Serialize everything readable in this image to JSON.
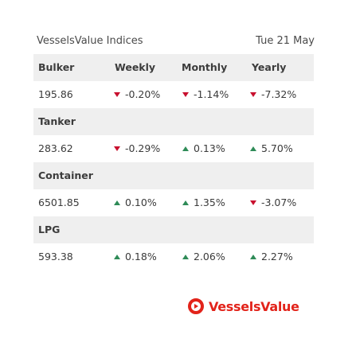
{
  "header": {
    "title": "VesselsValue Indices",
    "date": "Tue 21 May"
  },
  "columns": {
    "category": "Bulker",
    "weekly": "Weekly",
    "monthly": "Monthly",
    "yearly": "Yearly"
  },
  "sections": [
    {
      "name": "Bulker",
      "value": "195.86",
      "weekly": {
        "text": "-0.20%",
        "dir": "down"
      },
      "monthly": {
        "text": "-1.14%",
        "dir": "down"
      },
      "yearly": {
        "text": "-7.32%",
        "dir": "down"
      }
    },
    {
      "name": "Tanker",
      "value": "283.62",
      "weekly": {
        "text": "-0.29%",
        "dir": "down"
      },
      "monthly": {
        "text": "0.13%",
        "dir": "up"
      },
      "yearly": {
        "text": "5.70%",
        "dir": "up"
      }
    },
    {
      "name": "Container",
      "value": "6501.85",
      "weekly": {
        "text": "0.10%",
        "dir": "up"
      },
      "monthly": {
        "text": "1.35%",
        "dir": "up"
      },
      "yearly": {
        "text": "-3.07%",
        "dir": "down"
      }
    },
    {
      "name": "LPG",
      "value": "593.38",
      "weekly": {
        "text": "0.18%",
        "dir": "up"
      },
      "monthly": {
        "text": "2.06%",
        "dir": "up"
      },
      "yearly": {
        "text": "2.27%",
        "dir": "up"
      }
    }
  ],
  "icons": {
    "down": "triangle-down-icon",
    "up": "triangle-up-icon",
    "logo": "vesselsvalue-logo-icon"
  },
  "colors": {
    "down": "#c8102e",
    "up": "#2e8b57",
    "brand": "#e2231a"
  },
  "logo": {
    "text": "VesselsValue"
  }
}
